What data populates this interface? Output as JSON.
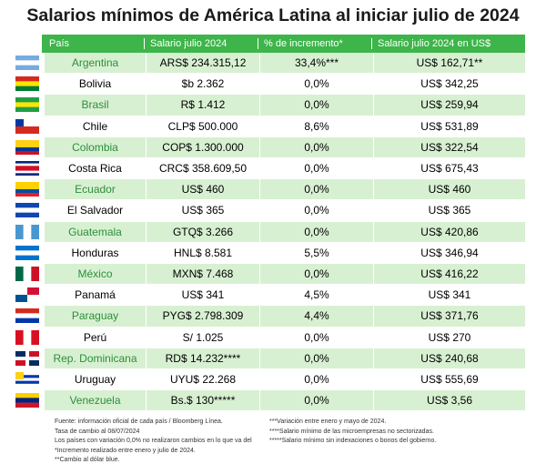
{
  "title": "Salarios mínimos de América Latina al iniciar julio de 2024",
  "table": {
    "header": [
      "País",
      "Salario julio 2024",
      "% de incremento*",
      "Salario julio 2024 en US$"
    ],
    "rows": [
      [
        "Argentina",
        "ARS$ 234.315,12",
        "33,4%***",
        "US$ 162,71**"
      ],
      [
        "Bolivia",
        "$b 2.362",
        "0,0%",
        "US$ 342,25"
      ],
      [
        "Brasil",
        "R$ 1.412",
        "0,0%",
        "US$ 259,94"
      ],
      [
        "Chile",
        "CLP$ 500.000",
        "8,6%",
        "US$ 531,89"
      ],
      [
        "Colombia",
        "COP$ 1.300.000",
        "0,0%",
        "US$ 322,54"
      ],
      [
        "Costa Rica",
        "CRC$ 358.609,50",
        "0,0%",
        "US$ 675,43"
      ],
      [
        "Ecuador",
        "US$ 460",
        "0,0%",
        "US$ 460"
      ],
      [
        "El Salvador",
        "US$ 365",
        "0,0%",
        "US$ 365"
      ],
      [
        "Guatemala",
        "GTQ$ 3.266",
        "0,0%",
        "US$ 420,86"
      ],
      [
        "Honduras",
        "HNL$ 8.581",
        "5,5%",
        "US$ 346,94"
      ],
      [
        "México",
        "MXN$ 7.468",
        "0,0%",
        "US$ 416,22"
      ],
      [
        "Panamá",
        "US$ 341",
        "4,5%",
        "US$ 341"
      ],
      [
        "Paraguay",
        "PYG$ 2.798.309",
        "4,4%",
        "US$ 371,76"
      ],
      [
        "Perú",
        "S/ 1.025",
        "0,0%",
        "US$ 270"
      ],
      [
        "Rep. Dominicana",
        "RD$ 14.232****",
        "0,0%",
        "US$ 240,68"
      ],
      [
        "Uruguay",
        "UYU$ 22.268",
        "0,0%",
        "US$ 555,69"
      ],
      [
        "Venezuela",
        "Bs.$ 130*****",
        "0,0%",
        "US$ 3,56"
      ]
    ]
  },
  "notes": {
    "left": [
      "Fuente: información oficial de cada país / Bloomberg Línea.",
      "Tasa de cambio al 08/07/2024",
      "Los países con variación 0,0% no realizaron cambios en lo que va del",
      "*Incremento realizado entre enero y julio de 2024.",
      "**Cambio al dólar blue."
    ],
    "right": [
      "***Variación entre enero y mayo de 2024.",
      "****Salario mínimo de las microempresas no sectorizadas.",
      "*****Salario mínimo sin indexaciones o bonos del gobierno."
    ]
  }
}
